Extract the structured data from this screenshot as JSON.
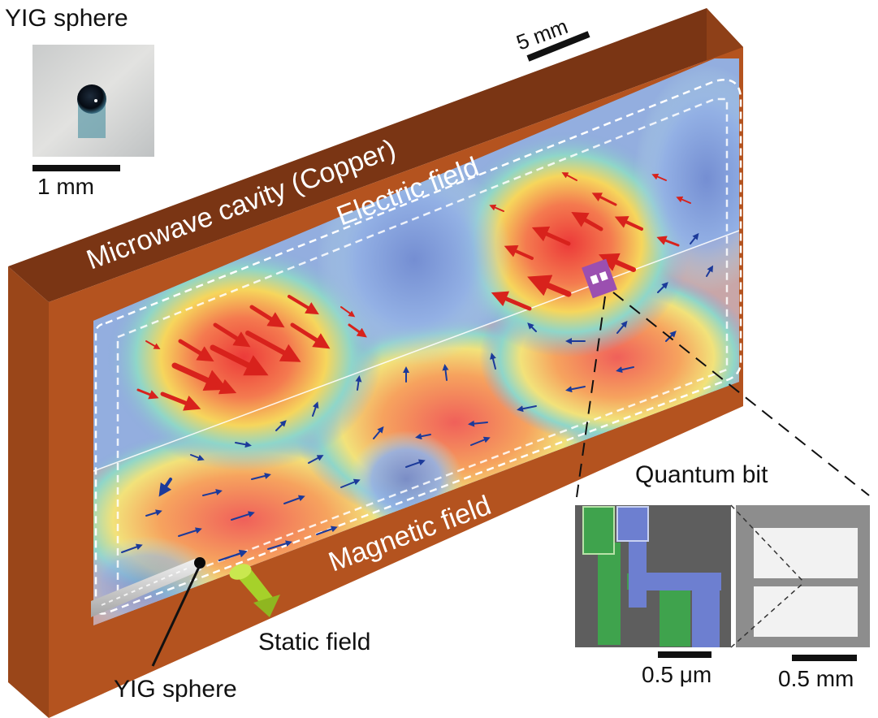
{
  "labels": {
    "yig_inset_title": "YIG sphere",
    "scale_inset": "1 mm",
    "scale_cavity": "5 mm",
    "cavity": "Microwave cavity (Copper)",
    "electric_field": "Electric field",
    "magnetic_field": "Magnetic field",
    "static_field": "Static field",
    "yig_sphere": "YIG sphere",
    "quantum_bit": "Quantum bit",
    "scale_sem": "0.5 μm",
    "scale_qubit": "0.5 mm"
  },
  "colors": {
    "copper": "#b4531f",
    "copper_dark": "#7a3514",
    "field_low": "#6f8fd6",
    "field_high": "#f26a5c",
    "electric_arrow": "#d8221c",
    "magnetic_arrow": "#1c3a9a",
    "static_arrow": "#a6d12a",
    "qubit_chip": "#9b4fb0",
    "sem_green": "#3fa34d",
    "sem_blue": "#6d7fd0"
  },
  "icons": [
    "yig-sphere-photo",
    "static-field-arrow",
    "qubit-chip-marker",
    "sem-micrograph",
    "qubit-pad-image"
  ]
}
